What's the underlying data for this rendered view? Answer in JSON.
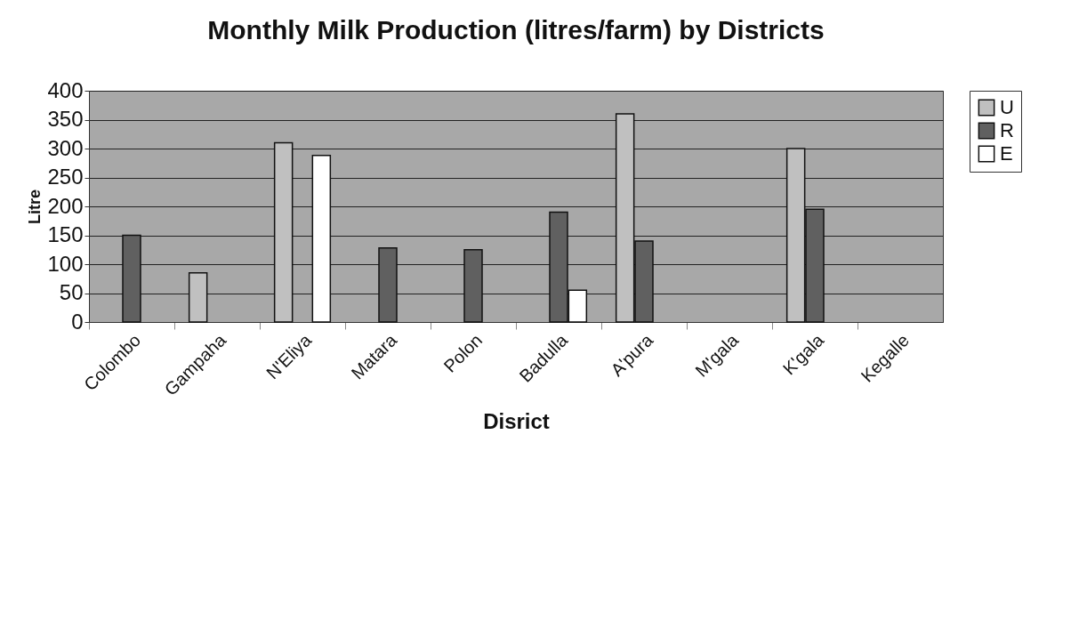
{
  "chart_data": {
    "type": "bar",
    "title": "Monthly Milk Production (litres/farm) by Districts",
    "xlabel": "Disrict",
    "ylabel": "Litre",
    "categories": [
      "Colombo",
      "Gampaha",
      "N'Eliya",
      "Matara",
      "Polon",
      "Badulla",
      "A'pura",
      "M'gala",
      "K'gala",
      "Kegalle"
    ],
    "series": [
      {
        "name": "U",
        "color": "#c0c0c0",
        "values": [
          null,
          85,
          310,
          null,
          null,
          null,
          360,
          null,
          300,
          null
        ]
      },
      {
        "name": "R",
        "color": "#606060",
        "values": [
          150,
          null,
          null,
          128,
          125,
          190,
          140,
          null,
          195,
          null
        ]
      },
      {
        "name": "E",
        "color": "#ffffff",
        "values": [
          null,
          null,
          288,
          null,
          null,
          55,
          null,
          null,
          null,
          null
        ]
      }
    ],
    "ylim": [
      0,
      400
    ],
    "yticks": [
      0,
      50,
      100,
      150,
      200,
      250,
      300,
      350,
      400
    ],
    "grid": "y",
    "legend": "right"
  }
}
